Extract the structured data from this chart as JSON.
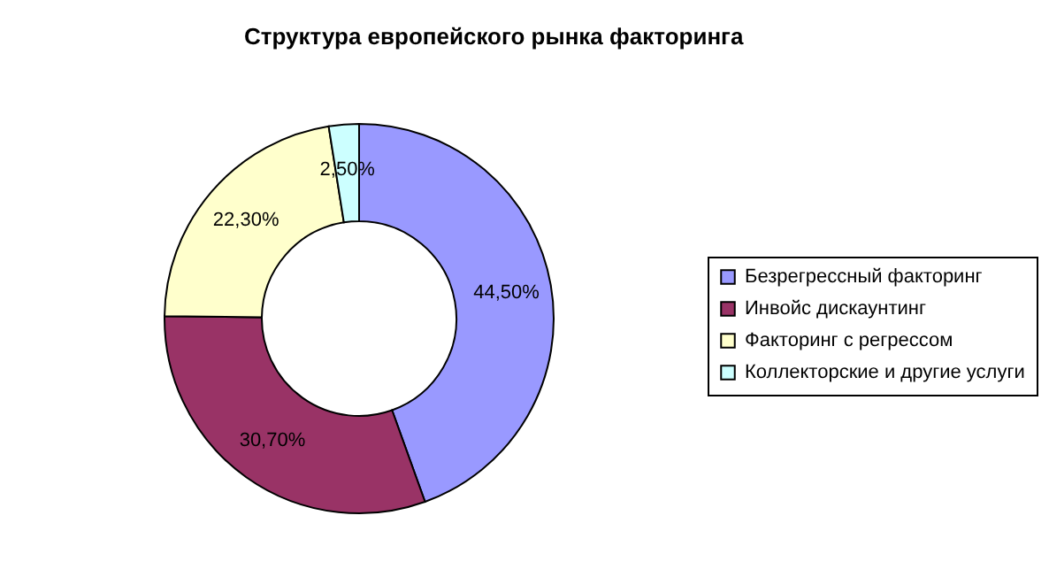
{
  "chart_data": {
    "type": "donut",
    "title": "Структура европейского рынка факторинга",
    "categories": [
      "Безрегрессный факторинг",
      "Инвойс дискаунтинг",
      "Факторинг с регрессом",
      "Коллекторские и другие услуги"
    ],
    "values": [
      44.5,
      30.7,
      22.3,
      2.5
    ],
    "value_labels": [
      "44,50%",
      "30,70%",
      "22,30%",
      "2,50%"
    ],
    "colors": [
      "#9999ff",
      "#993366",
      "#ffffcc",
      "#ccffff"
    ],
    "legend": "right"
  }
}
